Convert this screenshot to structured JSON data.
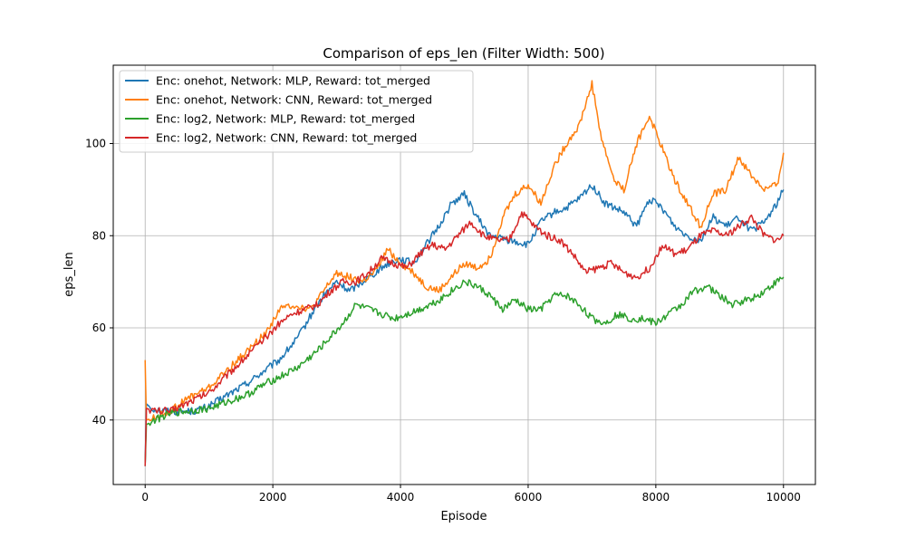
{
  "chart_data": {
    "type": "line",
    "title": "Comparison of eps_len (Filter Width: 500)",
    "xlabel": "Episode",
    "ylabel": "eps_len",
    "xlim": [
      -500,
      10500
    ],
    "ylim": [
      26,
      117
    ],
    "xticks": [
      0,
      2000,
      4000,
      6000,
      8000,
      10000
    ],
    "yticks": [
      40,
      60,
      80,
      100
    ],
    "xtick_labels": [
      "0",
      "2000",
      "4000",
      "6000",
      "8000",
      "10000"
    ],
    "ytick_labels": [
      "40",
      "60",
      "80",
      "100"
    ],
    "grid": true,
    "legend_position": "top-left",
    "series": [
      {
        "name": "Enc: onehot, Network: MLP, Reward: tot_merged",
        "color": "#1f77b4",
        "points": [
          [
            0,
            30
          ],
          [
            20,
            43.5
          ],
          [
            100,
            42.5
          ],
          [
            300,
            42
          ],
          [
            500,
            41.8
          ],
          [
            800,
            42
          ],
          [
            1000,
            43
          ],
          [
            1300,
            45.5
          ],
          [
            1600,
            48
          ],
          [
            1900,
            51
          ],
          [
            2100,
            53
          ],
          [
            2400,
            58
          ],
          [
            2650,
            64
          ],
          [
            2800,
            67
          ],
          [
            3000,
            70
          ],
          [
            3200,
            68
          ],
          [
            3400,
            70
          ],
          [
            3600,
            72
          ],
          [
            3800,
            74
          ],
          [
            4000,
            75
          ],
          [
            4200,
            74
          ],
          [
            4400,
            78
          ],
          [
            4600,
            82
          ],
          [
            4800,
            87
          ],
          [
            5000,
            89
          ],
          [
            5200,
            84
          ],
          [
            5400,
            80
          ],
          [
            5700,
            79
          ],
          [
            6000,
            78
          ],
          [
            6200,
            83
          ],
          [
            6400,
            85
          ],
          [
            6600,
            86
          ],
          [
            6800,
            88
          ],
          [
            7000,
            91
          ],
          [
            7200,
            87
          ],
          [
            7500,
            85
          ],
          [
            7700,
            82
          ],
          [
            7900,
            88
          ],
          [
            8100,
            86
          ],
          [
            8300,
            82
          ],
          [
            8500,
            80
          ],
          [
            8700,
            79
          ],
          [
            8900,
            84
          ],
          [
            9100,
            82
          ],
          [
            9300,
            84
          ],
          [
            9500,
            81
          ],
          [
            9700,
            83
          ],
          [
            9900,
            87
          ],
          [
            10000,
            90
          ]
        ]
      },
      {
        "name": "Enc: onehot, Network: CNN, Reward: tot_merged",
        "color": "#ff7f0e",
        "points": [
          [
            0,
            53
          ],
          [
            20,
            40
          ],
          [
            150,
            40.5
          ],
          [
            400,
            42
          ],
          [
            700,
            45
          ],
          [
            1000,
            47
          ],
          [
            1300,
            51
          ],
          [
            1600,
            55
          ],
          [
            1900,
            59
          ],
          [
            2100,
            64
          ],
          [
            2300,
            65
          ],
          [
            2600,
            64
          ],
          [
            2800,
            68
          ],
          [
            3000,
            72
          ],
          [
            3200,
            71
          ],
          [
            3400,
            70
          ],
          [
            3600,
            72
          ],
          [
            3800,
            77
          ],
          [
            4000,
            74
          ],
          [
            4200,
            72
          ],
          [
            4400,
            69
          ],
          [
            4600,
            68
          ],
          [
            4800,
            71
          ],
          [
            5000,
            74
          ],
          [
            5200,
            73
          ],
          [
            5400,
            75
          ],
          [
            5600,
            84
          ],
          [
            5800,
            89
          ],
          [
            6000,
            91
          ],
          [
            6200,
            87
          ],
          [
            6400,
            95
          ],
          [
            6600,
            100
          ],
          [
            6800,
            104
          ],
          [
            7000,
            113
          ],
          [
            7150,
            101
          ],
          [
            7350,
            92
          ],
          [
            7500,
            90
          ],
          [
            7700,
            100
          ],
          [
            7900,
            106
          ],
          [
            8100,
            99
          ],
          [
            8300,
            92
          ],
          [
            8500,
            87
          ],
          [
            8700,
            82
          ],
          [
            8900,
            89
          ],
          [
            9100,
            90
          ],
          [
            9300,
            97
          ],
          [
            9500,
            93
          ],
          [
            9700,
            90
          ],
          [
            9900,
            91
          ],
          [
            10000,
            98
          ]
        ]
      },
      {
        "name": "Enc: log2, Network: MLP, Reward: tot_merged",
        "color": "#2ca02c",
        "points": [
          [
            0,
            30
          ],
          [
            20,
            39
          ],
          [
            150,
            40
          ],
          [
            400,
            41.5
          ],
          [
            700,
            42
          ],
          [
            1000,
            42.5
          ],
          [
            1300,
            44
          ],
          [
            1600,
            45.5
          ],
          [
            1900,
            48
          ],
          [
            2200,
            50
          ],
          [
            2400,
            51.5
          ],
          [
            2700,
            55
          ],
          [
            2900,
            58
          ],
          [
            3100,
            61
          ],
          [
            3300,
            65
          ],
          [
            3500,
            64
          ],
          [
            3700,
            63
          ],
          [
            3900,
            62
          ],
          [
            4100,
            63
          ],
          [
            4300,
            64
          ],
          [
            4600,
            66
          ],
          [
            4800,
            68
          ],
          [
            5000,
            70
          ],
          [
            5200,
            69
          ],
          [
            5400,
            67
          ],
          [
            5600,
            64
          ],
          [
            5800,
            66
          ],
          [
            6000,
            64
          ],
          [
            6200,
            64
          ],
          [
            6400,
            67
          ],
          [
            6600,
            67
          ],
          [
            6800,
            65
          ],
          [
            7000,
            62
          ],
          [
            7200,
            61
          ],
          [
            7400,
            63
          ],
          [
            7600,
            62
          ],
          [
            7800,
            62
          ],
          [
            8000,
            61
          ],
          [
            8200,
            63
          ],
          [
            8400,
            65
          ],
          [
            8600,
            68
          ],
          [
            8800,
            69
          ],
          [
            9000,
            67
          ],
          [
            9200,
            65
          ],
          [
            9400,
            66
          ],
          [
            9600,
            67
          ],
          [
            9800,
            69
          ],
          [
            10000,
            71
          ]
        ]
      },
      {
        "name": "Enc: log2, Network: CNN, Reward: tot_merged",
        "color": "#d62728",
        "points": [
          [
            0,
            30
          ],
          [
            20,
            42.5
          ],
          [
            150,
            42
          ],
          [
            400,
            42
          ],
          [
            700,
            44
          ],
          [
            1000,
            46
          ],
          [
            1300,
            50
          ],
          [
            1600,
            54
          ],
          [
            1900,
            58
          ],
          [
            2100,
            61
          ],
          [
            2300,
            63
          ],
          [
            2500,
            64
          ],
          [
            2700,
            65
          ],
          [
            2900,
            68
          ],
          [
            3100,
            70
          ],
          [
            3300,
            70
          ],
          [
            3500,
            72
          ],
          [
            3700,
            75
          ],
          [
            3900,
            74
          ],
          [
            4100,
            73
          ],
          [
            4300,
            76
          ],
          [
            4500,
            78
          ],
          [
            4700,
            77
          ],
          [
            4900,
            80
          ],
          [
            5100,
            83
          ],
          [
            5300,
            80
          ],
          [
            5500,
            79
          ],
          [
            5700,
            79
          ],
          [
            5900,
            85
          ],
          [
            6100,
            82
          ],
          [
            6300,
            80
          ],
          [
            6500,
            79
          ],
          [
            6700,
            76
          ],
          [
            6900,
            72
          ],
          [
            7100,
            73
          ],
          [
            7300,
            74
          ],
          [
            7500,
            72
          ],
          [
            7700,
            71
          ],
          [
            7900,
            73
          ],
          [
            8100,
            78
          ],
          [
            8300,
            76
          ],
          [
            8500,
            77
          ],
          [
            8700,
            80
          ],
          [
            8900,
            81
          ],
          [
            9100,
            80
          ],
          [
            9300,
            82
          ],
          [
            9500,
            84
          ],
          [
            9700,
            80
          ],
          [
            9900,
            79
          ],
          [
            10000,
            80
          ]
        ]
      }
    ]
  }
}
